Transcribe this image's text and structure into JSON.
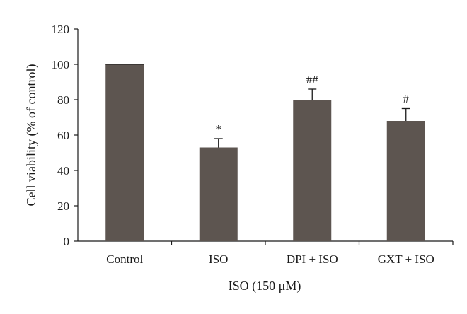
{
  "chart_data": {
    "type": "bar",
    "title": "",
    "xlabel": "ISO (150 μM)",
    "ylabel": "Cell viability (% of control)",
    "ylim": [
      0,
      120
    ],
    "yticks": [
      0,
      20,
      40,
      60,
      80,
      100,
      120
    ],
    "categories": [
      "Control",
      "ISO",
      "DPI + ISO",
      "GXT + ISO"
    ],
    "values": [
      100,
      53,
      80,
      68
    ],
    "errors": [
      0.3,
      5,
      6,
      7
    ],
    "annotations": [
      "",
      "*",
      "##",
      "#"
    ],
    "bar_color": "#5d5550",
    "grid": false,
    "legend": "none"
  }
}
